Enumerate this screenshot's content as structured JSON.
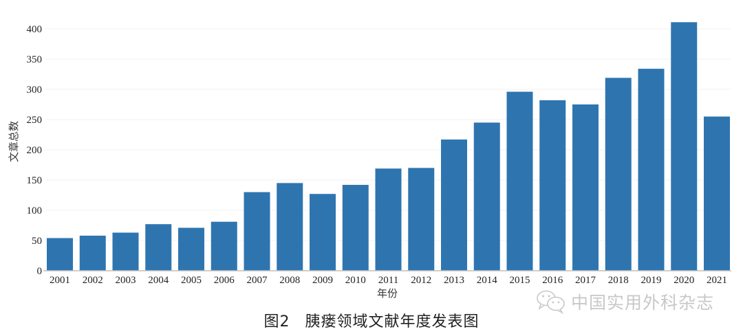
{
  "chart_data": {
    "type": "bar",
    "title": "图2 胰瘘领域文献年度发表图",
    "xlabel": "年份",
    "ylabel": "文章总数",
    "ylim": [
      0,
      420
    ],
    "yticks": [
      0,
      50,
      100,
      150,
      200,
      250,
      300,
      350,
      400
    ],
    "grid": true,
    "legend": null,
    "bar_color": "#2e75b0",
    "categories": [
      "2001",
      "2002",
      "2003",
      "2004",
      "2005",
      "2006",
      "2007",
      "2008",
      "2009",
      "2010",
      "2011",
      "2012",
      "2013",
      "2014",
      "2015",
      "2016",
      "2017",
      "2018",
      "2019",
      "2020",
      "2021"
    ],
    "values": [
      54,
      58,
      63,
      77,
      71,
      81,
      130,
      145,
      127,
      142,
      169,
      170,
      217,
      245,
      296,
      282,
      275,
      319,
      334,
      411,
      255
    ]
  },
  "caption": {
    "figure_number": "图2",
    "text": "胰瘘领域文献年度发表图"
  },
  "watermark": {
    "icon": "wechat-icon",
    "text": "中国实用外科杂志"
  }
}
